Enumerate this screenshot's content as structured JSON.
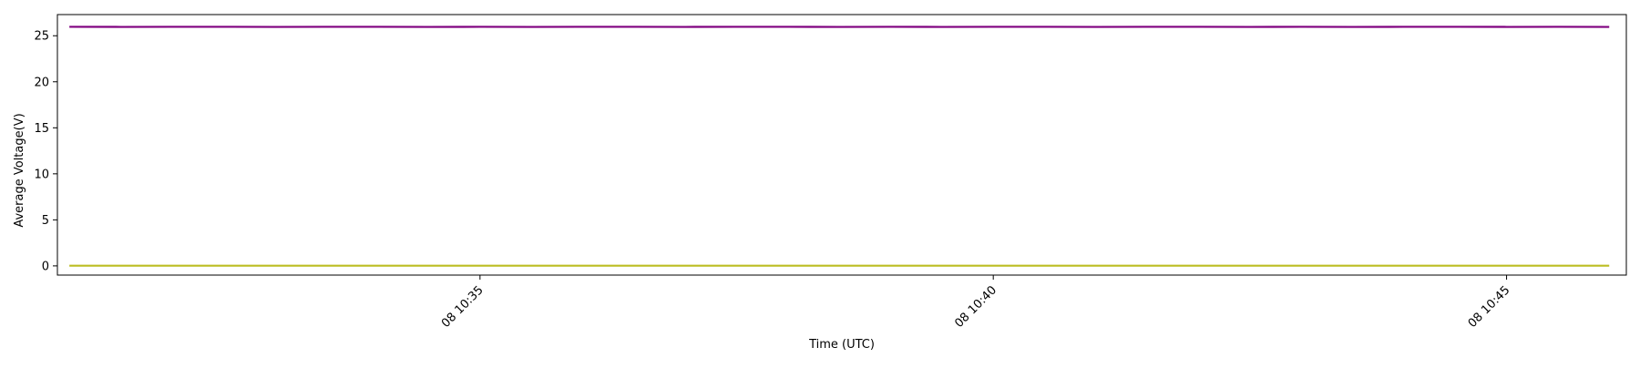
{
  "chart_data": {
    "type": "line",
    "title": "",
    "xlabel": "Time (UTC)",
    "ylabel": "Average Voltage(V)",
    "x_start": "08 10:31:00",
    "x_end": "08 10:46:00",
    "xlim": [
      "08 10:30:53",
      "08 10:46:10"
    ],
    "x_ticks": [
      {
        "time": "08 10:35:00",
        "label": "08 10:35"
      },
      {
        "time": "08 10:40:00",
        "label": "08 10:40"
      },
      {
        "time": "08 10:45:00",
        "label": "08 10:45"
      }
    ],
    "ylim": [
      -1.0,
      27.3
    ],
    "y_ticks": [
      {
        "value": 0,
        "label": "0"
      },
      {
        "value": 5,
        "label": "5"
      },
      {
        "value": 10,
        "label": "10"
      },
      {
        "value": 15,
        "label": "15"
      },
      {
        "value": 20,
        "label": "20"
      },
      {
        "value": 25,
        "label": "25"
      }
    ],
    "grid": false,
    "legend": "none",
    "series": [
      {
        "color": "#7f007f",
        "values": [
          25.97,
          25.96,
          25.97,
          25.97,
          25.96,
          25.97,
          25.97,
          25.96,
          25.97,
          25.96,
          25.97,
          25.97,
          25.96,
          25.97,
          25.97,
          25.96,
          25.97,
          25.96,
          25.97,
          25.97,
          25.96,
          25.97,
          25.97,
          25.96,
          25.97,
          25.96,
          25.97,
          25.97,
          25.96,
          25.97,
          25.96
        ]
      },
      {
        "color": "#bcbd22",
        "values": [
          0.02,
          0.02,
          0.02,
          0.02,
          0.02,
          0.02,
          0.02,
          0.02,
          0.02,
          0.02,
          0.02,
          0.02,
          0.02,
          0.02,
          0.02,
          0.02,
          0.02,
          0.02,
          0.02,
          0.02,
          0.02,
          0.02,
          0.02,
          0.02,
          0.02,
          0.02,
          0.02,
          0.02,
          0.02,
          0.02,
          0.02
        ]
      }
    ]
  }
}
